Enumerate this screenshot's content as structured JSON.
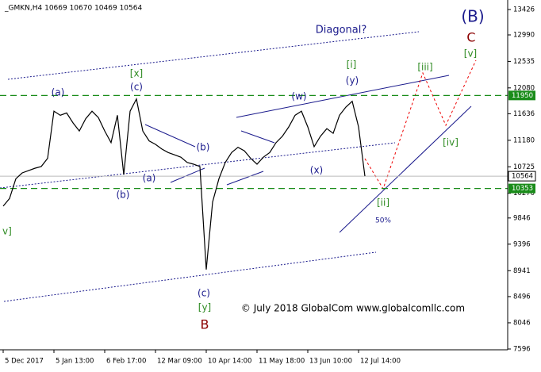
{
  "chart_data": {
    "type": "line",
    "title": "_GMKN,H4  10669 10670 10469 10564",
    "categories": [
      "5 Dec 2017",
      null,
      null,
      null,
      null,
      null,
      null,
      null,
      "5 Jan 13:00",
      null,
      null,
      null,
      null,
      null,
      null,
      null,
      "6 Feb 17:00",
      null,
      null,
      null,
      null,
      null,
      null,
      null,
      "12 Mar 09:00",
      null,
      null,
      null,
      null,
      null,
      null,
      null,
      "10 Apr 14:00",
      null,
      null,
      null,
      null,
      null,
      null,
      null,
      "11 May 18:00",
      null,
      null,
      null,
      null,
      null,
      null,
      null,
      "13 Jun 10:00",
      null,
      null,
      null,
      null,
      null,
      null,
      null,
      "12 Jul 14:00",
      null
    ],
    "series": [
      {
        "name": "_GMKN",
        "color": "#000000",
        "values": [
          10050,
          10180,
          10520,
          10620,
          10660,
          10700,
          10730,
          10870,
          11680,
          11610,
          11650,
          11480,
          11340,
          11550,
          11680,
          11570,
          11340,
          11140,
          11610,
          10590,
          11680,
          11890,
          11340,
          11170,
          11110,
          11030,
          10970,
          10930,
          10890,
          10800,
          10770,
          10730,
          8960,
          10120,
          10520,
          10800,
          10970,
          11060,
          11000,
          10870,
          10770,
          10890,
          10970,
          11140,
          11250,
          11410,
          11610,
          11680,
          11410,
          11070,
          11250,
          11380,
          11300,
          11610,
          11750,
          11850,
          11410,
          10564
        ]
      }
    ],
    "ylim": [
      7596,
      13426
    ],
    "yticks": [
      13426,
      12990,
      12535,
      12080,
      11636,
      11180,
      10725,
      10270,
      9846,
      9396,
      8941,
      8496,
      8046,
      7596
    ],
    "levels": [
      {
        "value": 11950,
        "color": "#1a8c1a"
      },
      {
        "value": 10353,
        "color": "#1a8c1a"
      }
    ],
    "last_price": 10564,
    "annotations": [
      {
        "text": "(B)",
        "color": "#1a1a8c"
      },
      {
        "text": "C",
        "color": "#8b0000"
      },
      {
        "text": "Diagonal?",
        "color": "#1a1a8c"
      },
      {
        "text": "[iii]",
        "color": "#2e8b22"
      },
      {
        "text": "[v]",
        "color": "#2e8b22"
      },
      {
        "text": "[i]",
        "color": "#2e8b22"
      },
      {
        "text": "(y)",
        "color": "#1a1a8c"
      },
      {
        "text": "(w)",
        "color": "#1a1a8c"
      },
      {
        "text": "(a)",
        "color": "#1a1a8c"
      },
      {
        "text": "[x]",
        "color": "#2e8b22"
      },
      {
        "text": "(c)",
        "color": "#1a1a8c"
      },
      {
        "text": "(b)",
        "color": "#1a1a8c"
      },
      {
        "text": "(a)",
        "color": "#1a1a8c"
      },
      {
        "text": "(b)",
        "color": "#1a1a8c"
      },
      {
        "text": "(x)",
        "color": "#1a1a8c"
      },
      {
        "text": "[iv]",
        "color": "#2e8b22"
      },
      {
        "text": "[ii]",
        "color": "#2e8b22"
      },
      {
        "text": "50%",
        "color": "#1a1a8c"
      },
      {
        "text": "(c)",
        "color": "#1a1a8c"
      },
      {
        "text": "[y]",
        "color": "#2e8b22"
      },
      {
        "text": "B",
        "color": "#8b0000"
      },
      {
        "text": "v]",
        "color": "#2e8b22"
      },
      {
        "text": "© July 2018 GlobalCom www.globalcomllc.com",
        "color": "#000000"
      }
    ]
  }
}
